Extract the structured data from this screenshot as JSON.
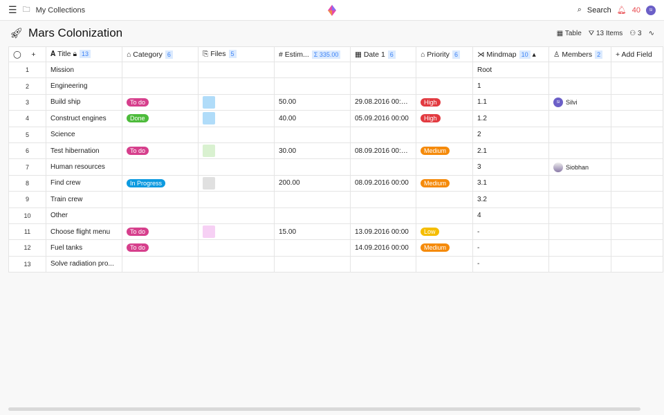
{
  "topbar": {
    "breadcrumb": "My Collections",
    "search": "Search",
    "notifications": "40",
    "avatar": "SI"
  },
  "page": {
    "title": "Mars Colonization"
  },
  "toolbar": {
    "view": "Table",
    "items": "13 Items",
    "shared": "3"
  },
  "columns": [
    {
      "label": "Title",
      "count": "13",
      "icon": "text-icon"
    },
    {
      "label": "Category",
      "count": "6",
      "icon": "tag-icon"
    },
    {
      "label": "Files",
      "count": "5",
      "icon": "paperclip-icon"
    },
    {
      "label": "Estim...",
      "count": "Σ 335.00",
      "icon": "hash-icon"
    },
    {
      "label": "Date 1",
      "count": "6",
      "icon": "calendar-icon"
    },
    {
      "label": "Priority",
      "count": "6",
      "icon": "tag-icon"
    },
    {
      "label": "Mindmap",
      "count": "10",
      "icon": "mindmap-icon"
    },
    {
      "label": "Members",
      "count": "2",
      "icon": "user-icon"
    }
  ],
  "add_field": "Add Field",
  "colors": {
    "todo": "#d63f8c",
    "done": "#4dbb3b",
    "inprogress": "#0c9ae0",
    "high": "#e23a40",
    "medium": "#f58a0a",
    "low": "#f5bd00"
  },
  "rows": [
    {
      "n": "1",
      "title": "Mission",
      "cat": "",
      "file": "",
      "est": "",
      "date": "",
      "pri": "",
      "mind": "Root",
      "mem": ""
    },
    {
      "n": "2",
      "title": "Engineering",
      "cat": "",
      "file": "",
      "est": "",
      "date": "",
      "pri": "",
      "mind": "1",
      "mem": ""
    },
    {
      "n": "3",
      "title": "Build ship",
      "cat": "To do",
      "file": "#7cc4f5",
      "est": "50.00",
      "date": "29.08.2016 00:00 -",
      "pri": "High",
      "mind": "1.1",
      "mem": "Silvi"
    },
    {
      "n": "4",
      "title": "Construct engines",
      "cat": "Done",
      "file": "#7cc4f5",
      "est": "40.00",
      "date": "05.09.2016 00:00",
      "pri": "High",
      "mind": "1.2",
      "mem": ""
    },
    {
      "n": "5",
      "title": "Science",
      "cat": "",
      "file": "",
      "est": "",
      "date": "",
      "pri": "",
      "mind": "2",
      "mem": ""
    },
    {
      "n": "6",
      "title": "Test hibernation",
      "cat": "To do",
      "file": "#bfe8b0",
      "est": "30.00",
      "date": "08.09.2016 00:00 -",
      "pri": "Medium",
      "mind": "2.1",
      "mem": ""
    },
    {
      "n": "7",
      "title": "Human resources",
      "cat": "",
      "file": "",
      "est": "",
      "date": "",
      "pri": "",
      "mind": "3",
      "mem": "Siobhan"
    },
    {
      "n": "8",
      "title": "Find crew",
      "cat": "In Progress",
      "file": "#cccccc",
      "est": "200.00",
      "date": "08.09.2016 00:00",
      "pri": "Medium",
      "mind": "3.1",
      "mem": ""
    },
    {
      "n": "9",
      "title": "Train crew",
      "cat": "",
      "file": "",
      "est": "",
      "date": "",
      "pri": "",
      "mind": "3.2",
      "mem": ""
    },
    {
      "n": "10",
      "title": "Other",
      "cat": "",
      "file": "",
      "est": "",
      "date": "",
      "pri": "",
      "mind": "4",
      "mem": ""
    },
    {
      "n": "11",
      "title": "Choose flight menu",
      "cat": "To do",
      "file": "#f0b0ec",
      "est": "15.00",
      "date": "13.09.2016 00:00",
      "pri": "Low",
      "mind": "-",
      "mem": ""
    },
    {
      "n": "12",
      "title": "Fuel tanks",
      "cat": "To do",
      "file": "",
      "est": "",
      "date": "14.09.2016 00:00",
      "pri": "Medium",
      "mind": "-",
      "mem": ""
    },
    {
      "n": "13",
      "title": "Solve radiation pro...",
      "cat": "",
      "file": "",
      "est": "",
      "date": "",
      "pri": "",
      "mind": "-",
      "mem": ""
    }
  ]
}
